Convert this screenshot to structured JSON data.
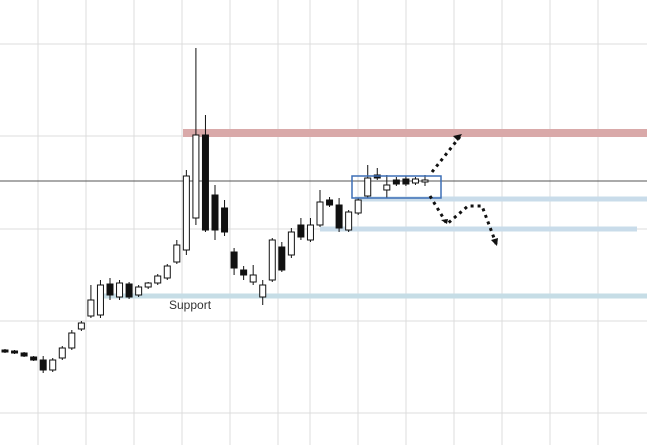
{
  "chart_data": {
    "type": "candlestick",
    "open": [
      95,
      94,
      92,
      88,
      85,
      75,
      87,
      97,
      116,
      129,
      130,
      161,
      148,
      161,
      150,
      158,
      162,
      167,
      183,
      195,
      227,
      310,
      250,
      237,
      193,
      175,
      163,
      148,
      165,
      198,
      190,
      220,
      205,
      220,
      245,
      240,
      215,
      232,
      249,
      270,
      255,
      265,
      266,
      262,
      263
    ],
    "high": [
      96,
      95,
      93,
      89,
      89,
      87,
      99,
      115,
      124,
      160,
      165,
      167,
      165,
      163,
      160,
      163,
      171,
      181,
      205,
      275,
      397,
      330,
      260,
      245,
      197,
      179,
      180,
      165,
      207,
      203,
      217,
      227,
      227,
      255,
      248,
      247,
      235,
      247,
      280,
      277,
      270,
      268,
      269,
      268,
      270
    ],
    "low": [
      92,
      91,
      88,
      84,
      72,
      73,
      85,
      95,
      114,
      127,
      127,
      145,
      145,
      146,
      148,
      156,
      160,
      165,
      181,
      190,
      220,
      213,
      205,
      209,
      170,
      165,
      160,
      140,
      163,
      173,
      187,
      205,
      203,
      218,
      238,
      213,
      213,
      230,
      247,
      265,
      247,
      259,
      259,
      260,
      259
    ],
    "close": [
      93,
      92,
      89,
      85,
      75,
      85,
      97,
      112,
      122,
      145,
      160,
      150,
      162,
      148,
      158,
      162,
      169,
      179,
      200,
      269,
      310,
      215,
      215,
      213,
      177,
      170,
      170,
      160,
      205,
      175,
      213,
      208,
      220,
      243,
      240,
      217,
      233,
      245,
      267,
      267,
      260,
      261,
      261,
      266,
      265
    ],
    "ylim": [
      0,
      445
    ],
    "levels": [
      {
        "value": 312,
        "color": "#d9a9a9"
      },
      {
        "value": 246,
        "color": "#c9dcea"
      },
      {
        "value": 216,
        "color": "#c9dcea"
      },
      {
        "value": 149,
        "color": "#c6dde6"
      }
    ],
    "crosshair": 264,
    "annotation": "Support"
  }
}
